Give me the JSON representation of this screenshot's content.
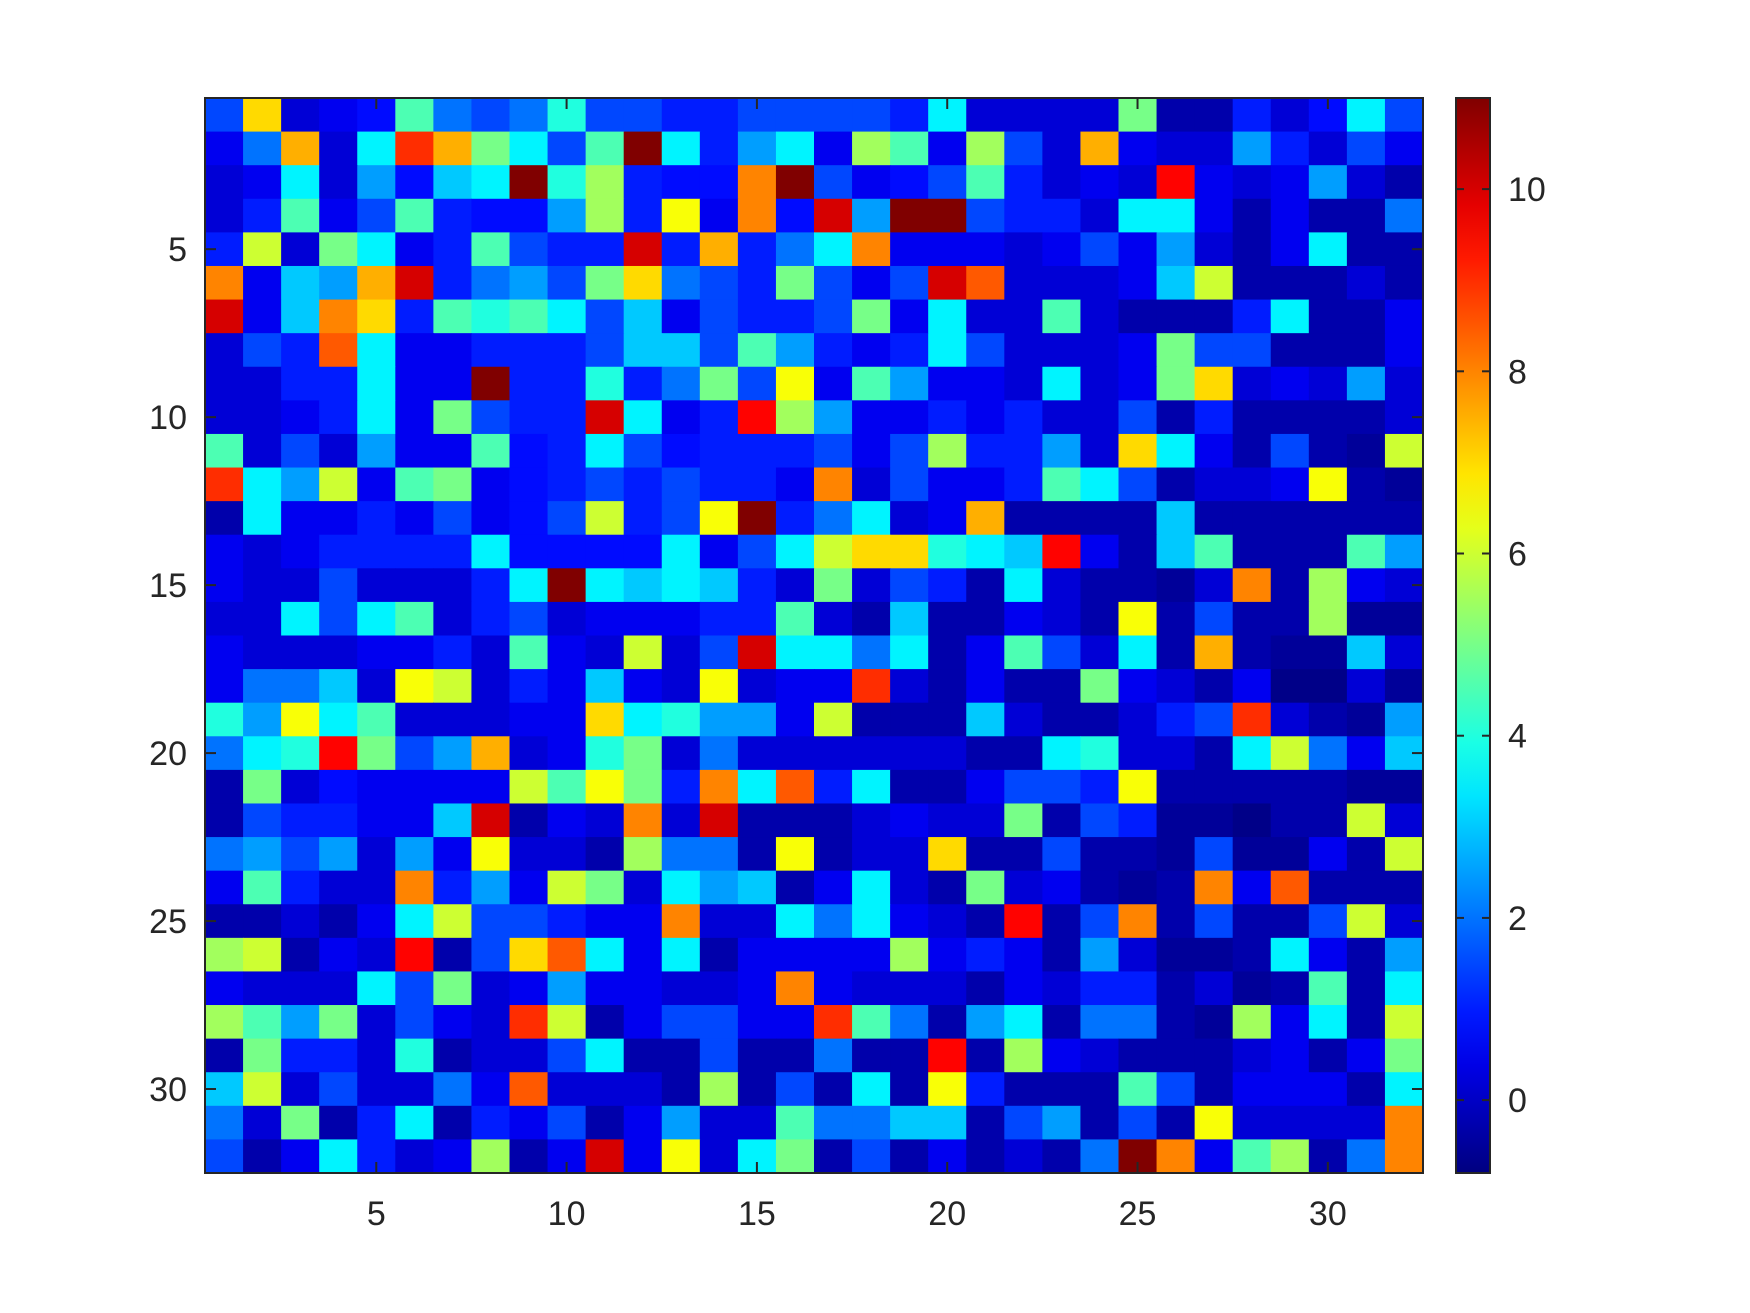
{
  "chart_data": {
    "type": "heatmap",
    "title": "",
    "xlabel": "",
    "ylabel": "",
    "rows": 32,
    "cols": 32,
    "x_ticks": [
      5,
      10,
      15,
      20,
      25,
      30
    ],
    "x_tick_labels": [
      "5",
      "10",
      "15",
      "20",
      "25",
      "30"
    ],
    "y_ticks": [
      5,
      10,
      15,
      20,
      25,
      30
    ],
    "y_tick_labels": [
      "5",
      "10",
      "15",
      "20",
      "25",
      "30"
    ],
    "colorbar": {
      "range": [
        -0.8,
        11.0
      ],
      "ticks": [
        0,
        2,
        4,
        6,
        8,
        10
      ],
      "tick_labels": [
        "0",
        "2",
        "4",
        "6",
        "8",
        "10"
      ],
      "colormap": "jet"
    },
    "values": [
      [
        1.5,
        7.0,
        0.2,
        0.5,
        0.8,
        4.5,
        2.0,
        1.5,
        2.0,
        4.0,
        1.5,
        1.5,
        1.0,
        1.0,
        1.5,
        1.5,
        1.5,
        1.5,
        1.0,
        3.5,
        0.2,
        0.2,
        0.2,
        0.2,
        5.0,
        -0.3,
        -0.3,
        1.0,
        0.2,
        0.8,
        3.5,
        1.5
      ],
      [
        0.5,
        2.0,
        7.5,
        0.2,
        3.5,
        9.0,
        7.5,
        5.0,
        3.5,
        1.5,
        4.5,
        11.0,
        3.5,
        1.0,
        2.5,
        3.5,
        0.5,
        5.5,
        4.5,
        0.5,
        5.5,
        1.5,
        0.2,
        7.5,
        0.5,
        0.2,
        0.2,
        2.5,
        1.0,
        0.2,
        1.5,
        0.5
      ],
      [
        0.2,
        0.5,
        3.5,
        0.2,
        2.5,
        0.8,
        3.0,
        3.5,
        11.0,
        4.0,
        5.5,
        1.0,
        0.8,
        0.8,
        8.0,
        11.0,
        1.5,
        0.5,
        0.8,
        1.5,
        4.5,
        1.0,
        0.2,
        0.5,
        0.2,
        9.5,
        0.5,
        0.2,
        0.5,
        2.5,
        0.2,
        -0.3
      ],
      [
        0.2,
        1.0,
        4.5,
        0.5,
        1.5,
        4.5,
        1.0,
        0.8,
        0.8,
        2.5,
        5.5,
        1.0,
        6.5,
        0.5,
        8.0,
        0.8,
        10.0,
        2.5,
        11.0,
        11.0,
        1.5,
        1.0,
        1.0,
        0.2,
        3.5,
        3.5,
        0.5,
        -0.3,
        0.5,
        -0.3,
        -0.3,
        2.0
      ],
      [
        1.0,
        6.0,
        0.2,
        5.0,
        3.5,
        0.5,
        1.0,
        4.5,
        1.5,
        1.0,
        1.0,
        10.0,
        1.0,
        7.5,
        1.0,
        2.0,
        3.5,
        8.0,
        0.5,
        0.5,
        0.5,
        0.2,
        0.5,
        1.5,
        0.5,
        2.5,
        0.2,
        -0.3,
        0.5,
        3.5,
        -0.3,
        -0.3
      ],
      [
        8.0,
        0.5,
        3.0,
        2.5,
        7.5,
        10.0,
        1.0,
        2.0,
        2.5,
        1.5,
        5.0,
        7.0,
        2.0,
        1.5,
        1.0,
        5.0,
        1.5,
        0.5,
        1.5,
        10.0,
        8.5,
        0.2,
        0.2,
        0.2,
        0.5,
        3.0,
        6.0,
        -0.3,
        -0.3,
        -0.3,
        0.2,
        -0.3
      ],
      [
        10.0,
        0.5,
        3.0,
        8.0,
        7.0,
        1.0,
        4.5,
        4.0,
        4.5,
        3.5,
        1.5,
        3.0,
        0.5,
        1.5,
        1.0,
        1.0,
        1.5,
        5.0,
        0.5,
        3.5,
        0.2,
        0.2,
        4.5,
        0.2,
        -0.3,
        -0.3,
        -0.3,
        1.0,
        3.5,
        -0.3,
        -0.3,
        0.5
      ],
      [
        0.2,
        1.5,
        1.0,
        8.5,
        3.5,
        0.5,
        0.5,
        1.0,
        1.0,
        1.0,
        1.5,
        3.0,
        3.0,
        1.5,
        4.5,
        2.5,
        1.0,
        0.5,
        1.0,
        3.5,
        1.5,
        0.2,
        0.2,
        0.2,
        0.5,
        5.0,
        1.5,
        1.5,
        -0.3,
        -0.3,
        -0.3,
        0.5
      ],
      [
        0.2,
        0.2,
        1.0,
        1.0,
        3.5,
        0.5,
        0.5,
        11.0,
        1.0,
        1.0,
        4.0,
        1.0,
        2.0,
        5.0,
        1.5,
        6.5,
        0.5,
        4.5,
        2.5,
        0.5,
        0.5,
        0.2,
        3.5,
        0.2,
        0.5,
        5.0,
        7.0,
        0.2,
        0.5,
        0.2,
        2.5,
        0.2
      ],
      [
        0.2,
        0.2,
        0.5,
        1.0,
        3.5,
        0.5,
        5.0,
        1.5,
        1.0,
        1.0,
        10.0,
        3.5,
        0.5,
        1.0,
        9.5,
        5.5,
        2.5,
        0.5,
        0.5,
        1.0,
        0.5,
        1.0,
        0.2,
        0.2,
        1.5,
        -0.3,
        1.0,
        -0.3,
        -0.3,
        -0.3,
        -0.3,
        0.2
      ],
      [
        4.5,
        0.2,
        1.5,
        0.2,
        2.5,
        0.5,
        0.5,
        4.5,
        0.8,
        1.0,
        3.5,
        1.5,
        0.8,
        1.0,
        1.0,
        1.0,
        1.5,
        0.5,
        1.5,
        5.5,
        1.0,
        1.0,
        2.5,
        0.2,
        7.0,
        3.5,
        0.5,
        -0.3,
        1.5,
        -0.3,
        -0.5,
        6.0
      ],
      [
        9.0,
        3.5,
        2.5,
        6.0,
        0.5,
        4.5,
        5.0,
        0.5,
        0.8,
        1.0,
        1.5,
        1.0,
        1.5,
        1.0,
        1.0,
        0.5,
        8.0,
        0.2,
        1.5,
        0.5,
        0.5,
        1.0,
        4.5,
        3.5,
        1.5,
        -0.3,
        0.2,
        0.2,
        0.5,
        6.5,
        -0.3,
        -0.5
      ],
      [
        -0.3,
        3.5,
        0.5,
        0.5,
        1.0,
        0.5,
        1.5,
        0.5,
        0.8,
        1.5,
        6.0,
        1.0,
        1.5,
        6.5,
        11.0,
        1.0,
        2.0,
        3.5,
        0.2,
        0.5,
        7.5,
        -0.3,
        -0.3,
        -0.3,
        -0.3,
        3.0,
        -0.3,
        -0.3,
        -0.3,
        -0.3,
        -0.3,
        -0.3
      ],
      [
        0.5,
        0.2,
        0.5,
        1.0,
        1.0,
        1.0,
        1.0,
        3.5,
        0.8,
        0.8,
        0.8,
        0.8,
        3.5,
        0.5,
        1.5,
        3.5,
        6.0,
        7.0,
        7.0,
        4.0,
        3.5,
        3.0,
        9.5,
        0.5,
        -0.3,
        3.0,
        4.5,
        -0.3,
        -0.3,
        -0.3,
        4.5,
        2.5
      ],
      [
        0.5,
        0.2,
        0.2,
        1.5,
        0.2,
        0.2,
        0.2,
        1.0,
        3.5,
        11.0,
        3.5,
        3.0,
        3.5,
        3.0,
        1.0,
        0.2,
        5.0,
        0.2,
        1.5,
        1.0,
        -0.3,
        3.5,
        0.2,
        -0.3,
        -0.3,
        -0.5,
        0.2,
        8.0,
        -0.3,
        5.5,
        0.5,
        0.2
      ],
      [
        0.2,
        0.2,
        3.5,
        1.5,
        3.5,
        4.5,
        0.2,
        1.0,
        1.5,
        0.2,
        0.5,
        0.5,
        0.5,
        1.0,
        1.0,
        4.5,
        0.2,
        -0.3,
        3.0,
        -0.3,
        -0.3,
        0.5,
        0.2,
        -0.3,
        6.5,
        -0.3,
        1.5,
        -0.3,
        -0.3,
        5.5,
        -0.5,
        -0.5
      ],
      [
        0.5,
        0.2,
        0.2,
        0.2,
        0.5,
        0.5,
        1.0,
        0.2,
        4.5,
        0.5,
        0.2,
        6.0,
        0.2,
        1.5,
        10.0,
        3.5,
        3.5,
        2.0,
        3.5,
        -0.3,
        0.5,
        4.5,
        1.5,
        0.2,
        3.5,
        -0.3,
        7.5,
        -0.3,
        -0.5,
        -0.5,
        3.0,
        0.2
      ],
      [
        0.5,
        2.0,
        2.0,
        3.0,
        0.2,
        6.5,
        6.0,
        0.2,
        1.0,
        0.5,
        3.0,
        0.5,
        0.2,
        6.5,
        0.2,
        0.5,
        0.5,
        9.0,
        0.2,
        -0.3,
        0.5,
        -0.3,
        -0.3,
        5.0,
        0.5,
        0.2,
        -0.3,
        0.5,
        -0.7,
        -0.7,
        0.2,
        -0.5
      ],
      [
        4.0,
        2.5,
        6.5,
        3.5,
        4.5,
        0.2,
        0.2,
        0.2,
        0.5,
        0.5,
        7.0,
        3.5,
        4.0,
        2.5,
        2.5,
        0.5,
        6.0,
        -0.3,
        -0.3,
        -0.3,
        3.0,
        0.2,
        -0.3,
        -0.3,
        0.2,
        1.0,
        1.5,
        9.0,
        0.2,
        -0.3,
        -0.5,
        2.5
      ],
      [
        2.0,
        3.5,
        4.0,
        9.5,
        5.0,
        1.5,
        2.5,
        7.5,
        0.2,
        0.5,
        4.0,
        5.0,
        0.2,
        2.0,
        0.2,
        0.2,
        0.2,
        0.2,
        0.2,
        0.2,
        -0.3,
        -0.3,
        3.5,
        4.0,
        0.2,
        0.2,
        -0.3,
        3.5,
        6.0,
        2.0,
        0.5,
        3.0
      ],
      [
        -0.3,
        5.0,
        0.2,
        0.8,
        0.5,
        0.5,
        0.5,
        0.5,
        6.0,
        4.5,
        6.5,
        5.0,
        1.0,
        8.0,
        3.5,
        8.5,
        1.0,
        3.5,
        -0.3,
        -0.3,
        0.5,
        1.5,
        1.5,
        1.0,
        6.5,
        -0.3,
        -0.3,
        -0.3,
        -0.3,
        -0.3,
        -0.5,
        -0.5
      ],
      [
        -0.3,
        1.5,
        1.0,
        1.0,
        0.5,
        0.5,
        3.0,
        10.0,
        -0.3,
        0.5,
        0.2,
        8.0,
        0.2,
        10.0,
        -0.3,
        -0.3,
        -0.3,
        0.2,
        0.5,
        0.2,
        0.2,
        5.0,
        -0.3,
        1.5,
        1.0,
        -0.5,
        -0.5,
        -0.7,
        -0.3,
        -0.3,
        6.0,
        0.2
      ],
      [
        2.0,
        2.5,
        1.5,
        2.5,
        0.2,
        2.5,
        0.5,
        6.5,
        0.2,
        0.2,
        -0.3,
        5.5,
        2.0,
        2.0,
        -0.3,
        6.5,
        -0.3,
        0.2,
        0.2,
        7.0,
        -0.3,
        -0.3,
        1.5,
        -0.3,
        -0.3,
        -0.5,
        1.5,
        -0.5,
        -0.5,
        0.5,
        -0.3,
        6.0
      ],
      [
        0.5,
        4.5,
        1.0,
        0.2,
        0.2,
        8.0,
        1.0,
        2.5,
        0.5,
        6.0,
        5.0,
        0.2,
        3.5,
        2.5,
        3.0,
        -0.3,
        0.5,
        3.5,
        0.2,
        -0.3,
        5.0,
        0.2,
        0.5,
        -0.3,
        -0.5,
        -0.3,
        8.0,
        0.5,
        8.5,
        -0.3,
        -0.3,
        -0.3
      ],
      [
        -0.3,
        -0.3,
        0.2,
        -0.3,
        0.5,
        3.5,
        6.0,
        1.5,
        1.5,
        1.0,
        0.5,
        0.5,
        8.0,
        0.2,
        0.2,
        3.5,
        2.0,
        3.5,
        0.5,
        0.2,
        -0.3,
        9.5,
        -0.3,
        1.5,
        8.0,
        -0.3,
        1.5,
        -0.3,
        -0.3,
        1.5,
        6.0,
        0.2
      ],
      [
        5.5,
        6.0,
        -0.3,
        0.5,
        0.2,
        9.5,
        -0.3,
        1.5,
        7.0,
        8.5,
        3.5,
        0.5,
        3.5,
        -0.3,
        0.5,
        0.5,
        0.5,
        0.5,
        5.5,
        0.5,
        1.0,
        0.5,
        -0.3,
        2.5,
        0.2,
        -0.5,
        -0.5,
        -0.3,
        3.5,
        0.5,
        -0.3,
        2.5
      ],
      [
        0.5,
        0.2,
        0.2,
        0.2,
        3.5,
        1.5,
        5.0,
        0.2,
        0.5,
        2.5,
        0.5,
        0.5,
        0.2,
        0.2,
        0.5,
        8.0,
        0.5,
        0.2,
        0.2,
        0.2,
        -0.3,
        0.5,
        0.2,
        1.0,
        1.0,
        -0.3,
        0.2,
        -0.5,
        -0.3,
        4.5,
        -0.3,
        3.5
      ],
      [
        5.5,
        4.5,
        2.5,
        5.0,
        0.2,
        1.5,
        0.5,
        0.2,
        9.0,
        6.0,
        -0.3,
        0.5,
        1.5,
        1.5,
        0.5,
        0.5,
        9.0,
        4.5,
        2.0,
        -0.3,
        2.5,
        3.5,
        -0.3,
        2.0,
        2.0,
        -0.3,
        -0.5,
        5.5,
        0.5,
        3.5,
        -0.3,
        6.0
      ],
      [
        -0.3,
        5.0,
        1.0,
        1.0,
        0.2,
        4.0,
        -0.3,
        0.2,
        0.2,
        1.5,
        3.5,
        -0.3,
        -0.3,
        1.5,
        -0.3,
        -0.3,
        2.0,
        -0.3,
        -0.3,
        9.5,
        -0.3,
        5.5,
        0.5,
        0.2,
        -0.3,
        -0.3,
        -0.3,
        0.2,
        0.5,
        -0.3,
        0.5,
        5.0
      ],
      [
        3.0,
        6.0,
        0.2,
        1.5,
        0.2,
        0.2,
        2.0,
        0.5,
        8.5,
        0.2,
        0.2,
        0.2,
        -0.3,
        5.5,
        -0.3,
        1.5,
        -0.3,
        3.5,
        -0.3,
        6.5,
        1.0,
        -0.3,
        -0.3,
        -0.3,
        4.5,
        1.5,
        -0.3,
        0.5,
        0.5,
        0.5,
        -0.3,
        3.5
      ],
      [
        2.0,
        0.2,
        5.0,
        -0.3,
        1.0,
        3.5,
        -0.3,
        1.0,
        0.5,
        1.5,
        -0.3,
        0.5,
        2.5,
        0.2,
        0.2,
        4.5,
        2.0,
        2.0,
        3.0,
        3.0,
        -0.3,
        1.5,
        2.5,
        -0.3,
        1.5,
        -0.3,
        6.5,
        0.2,
        0.2,
        0.2,
        0.2,
        8.0
      ],
      [
        1.5,
        -0.3,
        0.5,
        3.5,
        1.0,
        0.2,
        0.5,
        5.5,
        -0.3,
        0.5,
        10.0,
        0.5,
        6.5,
        0.2,
        3.5,
        5.0,
        -0.3,
        1.5,
        -0.3,
        0.5,
        -0.3,
        0.2,
        -0.3,
        2.0,
        11.0,
        8.0,
        0.5,
        4.5,
        5.5,
        -0.3,
        2.0,
        8.0
      ]
    ]
  }
}
